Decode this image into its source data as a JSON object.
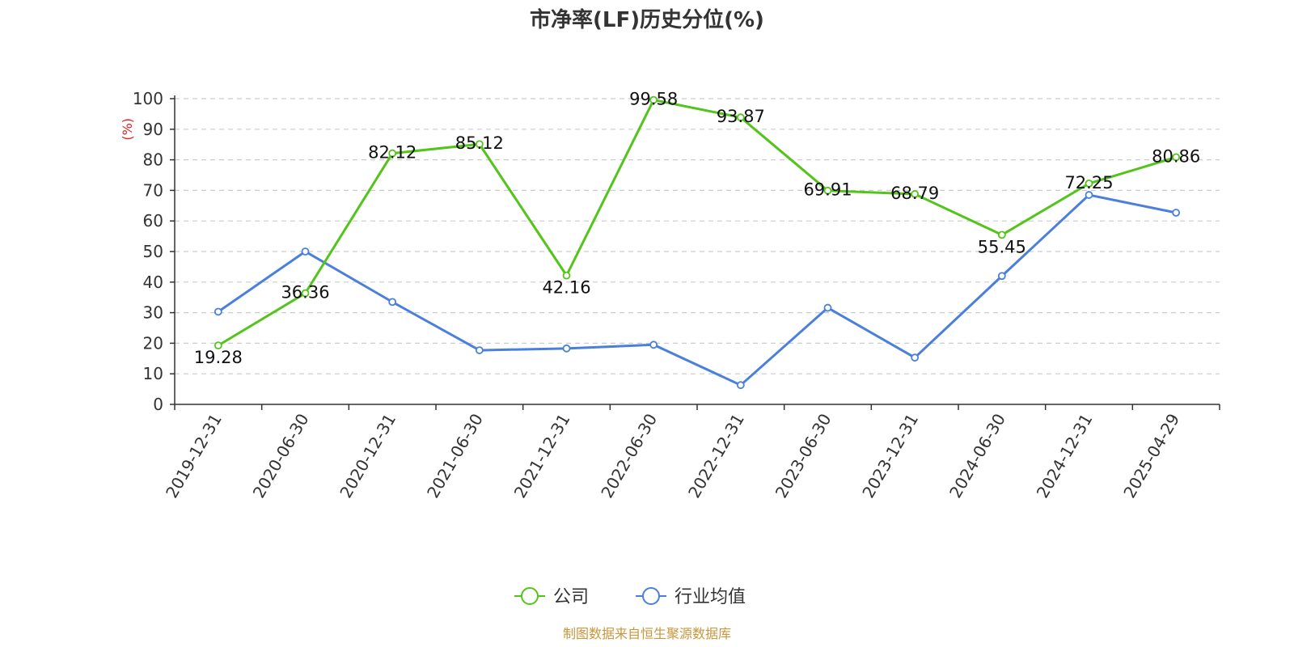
{
  "chart_data": {
    "type": "line",
    "title": "市净率(LF)历史分位(%)",
    "ylabel": "(%)",
    "ylim": [
      0,
      100
    ],
    "yticks": [
      0,
      10,
      20,
      30,
      40,
      50,
      60,
      70,
      80,
      90,
      100
    ],
    "grid": true,
    "legend_position": "bottom-center",
    "categories": [
      "2019-12-31",
      "2020-06-30",
      "2020-12-31",
      "2021-06-30",
      "2021-12-31",
      "2022-06-30",
      "2022-12-31",
      "2023-06-30",
      "2023-12-31",
      "2024-06-30",
      "2024-12-31",
      "2025-04-29"
    ],
    "series": [
      {
        "name": "公司",
        "color": "#52c41a",
        "show_labels": true,
        "values": [
          19.28,
          36.36,
          82.12,
          85.12,
          42.16,
          99.58,
          93.87,
          69.91,
          68.79,
          55.45,
          72.25,
          80.86
        ],
        "labels": [
          "19.28",
          "36.36",
          "82.12",
          "85.12",
          "42.16",
          "99.58",
          "93.87",
          "69.91",
          "68.79",
          "55.45",
          "72.25",
          "80.86"
        ]
      },
      {
        "name": "行业均值",
        "color": "#4a7fdb",
        "show_labels": false,
        "values": [
          30.3,
          50.0,
          33.5,
          17.7,
          18.3,
          19.5,
          6.3,
          31.6,
          15.3,
          42.0,
          68.5,
          62.7
        ]
      }
    ]
  },
  "source_note": "制图数据来自恒生聚源数据库"
}
